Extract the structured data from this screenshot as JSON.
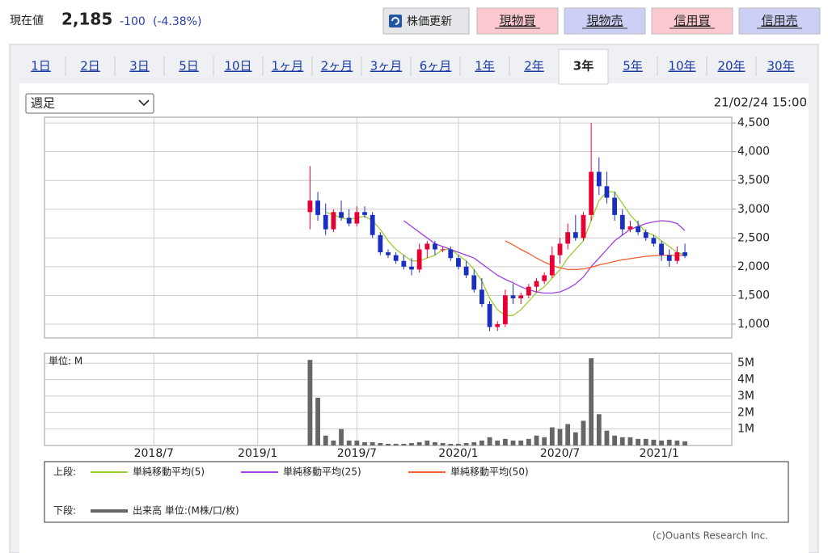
{
  "header": {
    "label": "現在値",
    "price": "2,185",
    "change": "-100",
    "change_pct": "(-4.38%)"
  },
  "buttons": [
    "株価更新",
    "現物買",
    "現物売",
    "信用買",
    "信用売"
  ],
  "tabs": [
    "1日",
    "2日",
    "3日",
    "5日",
    "10日",
    "1ヶ月",
    "2ヶ月",
    "3ヶ月",
    "6ヶ月",
    "1年",
    "2年",
    "3年",
    "5年",
    "10年",
    "20年",
    "30年"
  ],
  "selected_tab": 11,
  "period_select": "週足",
  "timestamp": "21/02/24 15:00",
  "chart_data": {
    "type": "candlestick",
    "x": [
      34,
      35,
      36,
      37,
      38,
      39,
      40,
      41,
      42,
      43,
      44,
      45,
      46,
      47,
      48,
      49,
      50,
      51,
      52,
      53,
      54,
      55,
      56,
      57,
      58,
      59,
      60,
      61,
      62,
      63,
      64,
      65,
      66,
      67,
      68,
      69,
      70,
      71,
      72,
      73,
      74,
      75,
      76,
      77,
      78,
      79,
      80,
      81,
      82
    ],
    "xlim": [
      0,
      88
    ],
    "xticks": [
      {
        "value": 14,
        "label": "2018/7"
      },
      {
        "value": 27.3,
        "label": "2019/1"
      },
      {
        "value": 40,
        "label": "2019/7"
      },
      {
        "value": 53,
        "label": "2020/1"
      },
      {
        "value": 66,
        "label": "2020/7"
      },
      {
        "value": 78.7,
        "label": "2021/1"
      }
    ],
    "open": [
      2950,
      3150,
      2900,
      2650,
      2950,
      2850,
      2750,
      2950,
      2900,
      2550,
      2250,
      2200,
      2100,
      2000,
      1950,
      2300,
      2400,
      2300,
      2300,
      2150,
      2000,
      1850,
      1600,
      1350,
      950,
      1000,
      1500,
      1450,
      1500,
      1650,
      1750,
      1850,
      2200,
      2400,
      2600,
      2500,
      2900,
      3650,
      3400,
      3200,
      2900,
      2650,
      2700,
      2600,
      2500,
      2400,
      2200,
      2100,
      2250
    ],
    "high": [
      3750,
      3300,
      3100,
      3000,
      3150,
      3000,
      3050,
      3050,
      2950,
      2600,
      2300,
      2250,
      2200,
      2150,
      2400,
      2450,
      2450,
      2350,
      2350,
      2200,
      2100,
      1950,
      1800,
      1400,
      1050,
      1600,
      1700,
      1550,
      1700,
      1800,
      1900,
      2350,
      2500,
      2750,
      2900,
      2950,
      4500,
      3900,
      3650,
      3300,
      3000,
      2800,
      2800,
      2650,
      2550,
      2450,
      2300,
      2350,
      2400
    ],
    "low": [
      2650,
      2800,
      2550,
      2600,
      2800,
      2700,
      2700,
      2850,
      2500,
      2200,
      2150,
      2050,
      1950,
      1850,
      1900,
      2150,
      2200,
      2250,
      2100,
      1950,
      1800,
      1550,
      1300,
      880,
      880,
      950,
      1350,
      1350,
      1450,
      1550,
      1700,
      1800,
      2050,
      2300,
      2450,
      2450,
      2800,
      3250,
      3100,
      2800,
      2550,
      2600,
      2550,
      2450,
      2350,
      2100,
      2000,
      2050,
      2150
    ],
    "close": [
      3150,
      2900,
      2650,
      2950,
      2850,
      2750,
      2950,
      2900,
      2550,
      2250,
      2200,
      2100,
      2000,
      1950,
      2300,
      2400,
      2300,
      2300,
      2150,
      2000,
      1850,
      1600,
      1350,
      950,
      1000,
      1500,
      1450,
      1500,
      1650,
      1750,
      1850,
      2200,
      2400,
      2600,
      2500,
      2900,
      3650,
      3400,
      3200,
      2900,
      2650,
      2700,
      2600,
      2500,
      2400,
      2200,
      2100,
      2250,
      2185
    ],
    "ylim": [
      760,
      4600
    ],
    "yticks": [
      {
        "value": 1000,
        "label": "1,000"
      },
      {
        "value": 1500,
        "label": "1,500"
      },
      {
        "value": 2000,
        "label": "2,000"
      },
      {
        "value": 2500,
        "label": "2,500"
      },
      {
        "value": 3000,
        "label": "3,000"
      },
      {
        "value": 3500,
        "label": "3,500"
      },
      {
        "value": 4000,
        "label": "4,000"
      },
      {
        "value": 4500,
        "label": "4,500"
      }
    ],
    "up_color": "#e60033",
    "down_color": "#1a2fbf",
    "grid": true,
    "moving_averages": [
      {
        "name": "単純移動平均(5)",
        "color": "#9acd32",
        "values": [
          null,
          null,
          2950,
          2900,
          2850,
          2820,
          2850,
          2880,
          2800,
          2650,
          2450,
          2300,
          2200,
          2100,
          2100,
          2150,
          2200,
          2300,
          2300,
          2200,
          2100,
          1950,
          1750,
          1450,
          1250,
          1150,
          1150,
          1250,
          1400,
          1550,
          1650,
          1800,
          1950,
          2150,
          2300,
          2450,
          2800,
          3150,
          3300,
          3300,
          3100,
          2900,
          2750,
          2600,
          2550,
          2450,
          2350,
          2250,
          2200
        ]
      },
      {
        "name": "単純移動平均(25)",
        "color": "#a040e0",
        "values": [
          null,
          null,
          null,
          null,
          null,
          null,
          null,
          null,
          null,
          null,
          null,
          null,
          2800,
          2700,
          2600,
          2500,
          2400,
          2350,
          2300,
          2250,
          2200,
          2150,
          2050,
          1950,
          1850,
          1780,
          1720,
          1650,
          1600,
          1560,
          1540,
          1540,
          1560,
          1620,
          1700,
          1820,
          2000,
          2150,
          2300,
          2450,
          2550,
          2650,
          2700,
          2750,
          2780,
          2800,
          2790,
          2750,
          2630
        ]
      },
      {
        "name": "単純移動平均(50)",
        "color": "#f06030",
        "values": [
          null,
          null,
          null,
          null,
          null,
          null,
          null,
          null,
          null,
          null,
          null,
          null,
          null,
          null,
          null,
          null,
          null,
          null,
          null,
          null,
          null,
          null,
          null,
          null,
          null,
          2450,
          2380,
          2300,
          2230,
          2150,
          2080,
          2020,
          1980,
          1950,
          1950,
          1960,
          1990,
          2030,
          2060,
          2090,
          2120,
          2140,
          2160,
          2180,
          2190,
          2200,
          2200,
          2200,
          2200
        ]
      }
    ],
    "volume": {
      "unit_label": "単位: M",
      "name": "出来高 単位:(M株/口/枚)",
      "color": "#666666",
      "values": [
        5.2,
        2.9,
        0.6,
        0.3,
        1.0,
        0.3,
        0.3,
        0.2,
        0.2,
        0.15,
        0.1,
        0.1,
        0.1,
        0.15,
        0.2,
        0.3,
        0.2,
        0.15,
        0.1,
        0.1,
        0.15,
        0.2,
        0.3,
        0.5,
        0.3,
        0.4,
        0.3,
        0.3,
        0.4,
        0.6,
        0.5,
        1.1,
        1.0,
        1.3,
        0.8,
        1.5,
        5.3,
        1.9,
        0.9,
        0.6,
        0.5,
        0.5,
        0.4,
        0.4,
        0.35,
        0.3,
        0.35,
        0.3,
        0.25
      ],
      "ylim": [
        0,
        5.6
      ],
      "yticks": [
        {
          "value": 1,
          "label": "1M"
        },
        {
          "value": 2,
          "label": "2M"
        },
        {
          "value": 3,
          "label": "3M"
        },
        {
          "value": 4,
          "label": "4M"
        },
        {
          "value": 5,
          "label": "5M"
        }
      ]
    },
    "legend": {
      "upper_label": "上段:",
      "lower_label": "下段:"
    }
  },
  "copyright": "(c)Ouants Research Inc."
}
